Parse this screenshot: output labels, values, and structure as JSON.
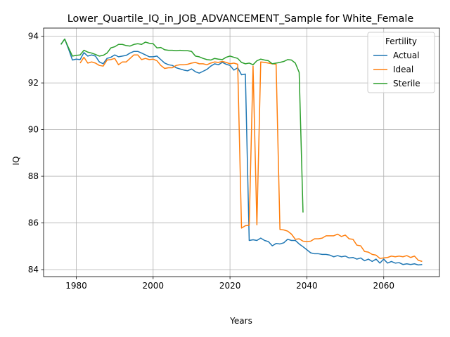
{
  "chart_data": {
    "type": "line",
    "title": "Lower_Quartile_IQ_in_JOB_ADVANCEMENT_Sample for White_Female",
    "xlabel": "Years",
    "ylabel": "IQ",
    "xlim": [
      1971.5,
      2074.5
    ],
    "ylim": [
      83.7,
      94.35
    ],
    "xticks": [
      1980,
      2000,
      2020,
      2040,
      2060
    ],
    "yticks": [
      84,
      86,
      88,
      90,
      92,
      94
    ],
    "grid": true,
    "legend": {
      "title": "Fertility",
      "position": "top-right"
    },
    "series": [
      {
        "name": "Actual",
        "color": "#1f77b4",
        "x": [
          1976,
          1977,
          1978,
          1979,
          1980,
          1981,
          1982,
          1983,
          1984,
          1985,
          1986,
          1987,
          1988,
          1989,
          1990,
          1991,
          1992,
          1993,
          1994,
          1995,
          1996,
          1997,
          1998,
          1999,
          2000,
          2001,
          2002,
          2003,
          2004,
          2005,
          2006,
          2007,
          2008,
          2009,
          2010,
          2011,
          2012,
          2013,
          2014,
          2015,
          2016,
          2017,
          2018,
          2019,
          2020,
          2021,
          2022,
          2023,
          2024,
          2025,
          2026,
          2027,
          2028,
          2029,
          2030,
          2031,
          2032,
          2033,
          2034,
          2035,
          2036,
          2037,
          2038,
          2039,
          2040,
          2041,
          2042,
          2043,
          2044,
          2045,
          2046,
          2047,
          2048,
          2049,
          2050,
          2051,
          2052,
          2053,
          2054,
          2055,
          2056,
          2057,
          2058,
          2059,
          2060,
          2061,
          2062,
          2063,
          2064,
          2065,
          2066,
          2067,
          2068,
          2069,
          2070
        ],
        "values": [
          93.65,
          93.88,
          93.45,
          92.98,
          93.02,
          93.0,
          93.3,
          93.15,
          93.2,
          93.15,
          92.9,
          92.82,
          93.05,
          93.1,
          93.2,
          93.12,
          93.15,
          93.18,
          93.28,
          93.35,
          93.35,
          93.28,
          93.2,
          93.12,
          93.12,
          93.15,
          93.0,
          92.85,
          92.78,
          92.75,
          92.65,
          92.6,
          92.55,
          92.52,
          92.6,
          92.48,
          92.42,
          92.5,
          92.58,
          92.72,
          92.82,
          92.78,
          92.88,
          92.8,
          92.75,
          92.55,
          92.65,
          92.35,
          92.38,
          85.25,
          85.28,
          85.25,
          85.35,
          85.25,
          85.2,
          85.02,
          85.12,
          85.1,
          85.15,
          85.3,
          85.25,
          85.25,
          85.1,
          84.98,
          84.85,
          84.72,
          84.68,
          84.68,
          84.65,
          84.65,
          84.62,
          84.55,
          84.6,
          84.55,
          84.58,
          84.5,
          84.52,
          84.45,
          84.5,
          84.38,
          84.45,
          84.35,
          84.45,
          84.28,
          84.45,
          84.28,
          84.35,
          84.28,
          84.3,
          84.22,
          84.25,
          84.22,
          84.25,
          84.2,
          84.22
        ]
      },
      {
        "name": "Ideal",
        "color": "#ff7f0e",
        "x": [
          1981,
          1982,
          1983,
          1984,
          1985,
          1986,
          1987,
          1988,
          1989,
          1990,
          1991,
          1992,
          1993,
          1994,
          1995,
          1996,
          1997,
          1998,
          1999,
          2000,
          2001,
          2002,
          2003,
          2004,
          2005,
          2006,
          2007,
          2008,
          2009,
          2010,
          2011,
          2012,
          2013,
          2014,
          2015,
          2016,
          2017,
          2018,
          2019,
          2020,
          2021,
          2022,
          2023,
          2024,
          2025,
          2026,
          2027,
          2028,
          2029,
          2030,
          2031,
          2032,
          2033,
          2034,
          2035,
          2036,
          2037,
          2038,
          2039,
          2040,
          2041,
          2042,
          2043,
          2044,
          2045,
          2046,
          2047,
          2048,
          2049,
          2050,
          2051,
          2052,
          2053,
          2054,
          2055,
          2056,
          2057,
          2058,
          2059,
          2060,
          2061,
          2062,
          2063,
          2064,
          2065,
          2066,
          2067,
          2068,
          2069,
          2070
        ],
        "values": [
          92.85,
          93.1,
          92.85,
          92.9,
          92.85,
          92.75,
          92.72,
          92.98,
          93.0,
          93.05,
          92.78,
          92.9,
          92.9,
          93.05,
          93.2,
          93.2,
          93.0,
          93.05,
          93.0,
          93.02,
          92.95,
          92.75,
          92.62,
          92.65,
          92.65,
          92.75,
          92.78,
          92.78,
          92.8,
          92.85,
          92.88,
          92.82,
          92.82,
          92.78,
          92.85,
          92.9,
          92.88,
          92.92,
          92.88,
          92.82,
          92.85,
          92.8,
          85.78,
          85.88,
          85.9,
          92.72,
          85.92,
          92.9,
          92.88,
          92.85,
          92.82,
          92.8,
          85.72,
          85.7,
          85.65,
          85.52,
          85.3,
          85.32,
          85.22,
          85.2,
          85.22,
          85.32,
          85.32,
          85.35,
          85.45,
          85.45,
          85.45,
          85.52,
          85.42,
          85.48,
          85.32,
          85.3,
          85.05,
          85.02,
          84.78,
          84.75,
          84.65,
          84.62,
          84.48,
          84.5,
          84.52,
          84.58,
          84.55,
          84.58,
          84.55,
          84.6,
          84.52,
          84.58,
          84.4,
          84.35
        ]
      },
      {
        "name": "Sterile",
        "color": "#2ca02c",
        "x": [
          1976,
          1977,
          1978,
          1979,
          1980,
          1981,
          1982,
          1983,
          1984,
          1985,
          1986,
          1987,
          1988,
          1989,
          1990,
          1991,
          1992,
          1993,
          1994,
          1995,
          1996,
          1997,
          1998,
          1999,
          2000,
          2001,
          2002,
          2003,
          2004,
          2005,
          2006,
          2007,
          2008,
          2009,
          2010,
          2011,
          2012,
          2013,
          2014,
          2015,
          2016,
          2017,
          2018,
          2019,
          2020,
          2021,
          2022,
          2023,
          2024,
          2025,
          2026,
          2027,
          2028,
          2029,
          2030,
          2031,
          2032,
          2033,
          2034,
          2035,
          2036,
          2037,
          2038,
          2039
        ],
        "values": [
          93.65,
          93.88,
          93.5,
          93.15,
          93.18,
          93.2,
          93.4,
          93.32,
          93.28,
          93.22,
          93.15,
          93.18,
          93.28,
          93.5,
          93.55,
          93.65,
          93.65,
          93.6,
          93.58,
          93.65,
          93.68,
          93.65,
          93.75,
          93.7,
          93.68,
          93.5,
          93.52,
          93.42,
          93.4,
          93.4,
          93.38,
          93.4,
          93.38,
          93.38,
          93.35,
          93.15,
          93.12,
          93.05,
          93.0,
          92.98,
          93.05,
          93.02,
          93.0,
          93.1,
          93.15,
          93.1,
          93.05,
          92.88,
          92.82,
          92.85,
          92.78,
          92.95,
          93.02,
          92.98,
          92.95,
          92.82,
          92.85,
          92.88,
          92.92,
          93.0,
          92.98,
          92.85,
          92.45,
          86.45
        ]
      }
    ]
  }
}
